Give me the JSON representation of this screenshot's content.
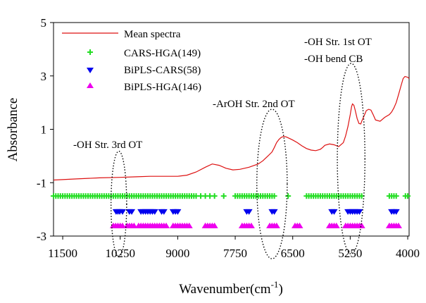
{
  "chart_data": {
    "type": "line",
    "title": "",
    "xlabel": "Wavenumber(cm",
    "xlabel_sup": "-1",
    "xlabel_close": ")",
    "ylabel": "Absorbance",
    "x_reversed": true,
    "xlim": [
      11700,
      3970
    ],
    "ylim": [
      -3,
      5
    ],
    "x_ticks": [
      11500,
      10250,
      9000,
      7750,
      6500,
      5250,
      4000
    ],
    "x_tick_labels": [
      "11500",
      "10250",
      "9000",
      "7750",
      "6500",
      "5250",
      "4000"
    ],
    "y_ticks": [
      -3,
      -1,
      1,
      3,
      5
    ],
    "y_tick_labels": [
      "-3",
      "-1",
      "1",
      "3",
      "5"
    ],
    "grid": false,
    "legend_position": "top-left",
    "series": [
      {
        "name": "Mean spectra",
        "kind": "line",
        "color": "#dd1111",
        "x": [
          11700,
          11200,
          10700,
          10250,
          9900,
          9600,
          9300,
          9000,
          8800,
          8600,
          8400,
          8250,
          8100,
          7950,
          7800,
          7650,
          7450,
          7250,
          7150,
          7050,
          6950,
          6900,
          6850,
          6800,
          6750,
          6700,
          6650,
          6600,
          6500,
          6400,
          6300,
          6200,
          6100,
          6000,
          5900,
          5850,
          5800,
          5700,
          5600,
          5500,
          5400,
          5350,
          5300,
          5250,
          5220,
          5200,
          5170,
          5140,
          5100,
          5060,
          5020,
          5000,
          4950,
          4900,
          4850,
          4800,
          4750,
          4700,
          4600,
          4500,
          4400,
          4350,
          4300,
          4250,
          4200,
          4150,
          4100,
          4060,
          4000,
          3970
        ],
        "y": [
          -0.9,
          -0.86,
          -0.82,
          -0.8,
          -0.78,
          -0.76,
          -0.76,
          -0.76,
          -0.72,
          -0.6,
          -0.42,
          -0.3,
          -0.35,
          -0.46,
          -0.52,
          -0.5,
          -0.42,
          -0.3,
          -0.18,
          -0.02,
          0.15,
          0.32,
          0.5,
          0.62,
          0.7,
          0.73,
          0.72,
          0.68,
          0.6,
          0.5,
          0.38,
          0.28,
          0.22,
          0.2,
          0.25,
          0.32,
          0.4,
          0.45,
          0.42,
          0.35,
          0.5,
          0.75,
          1.1,
          1.55,
          1.85,
          1.95,
          1.9,
          1.7,
          1.4,
          1.22,
          1.2,
          1.3,
          1.5,
          1.7,
          1.75,
          1.72,
          1.55,
          1.35,
          1.3,
          1.45,
          1.55,
          1.65,
          1.8,
          2.0,
          2.3,
          2.6,
          2.9,
          2.98,
          2.95,
          2.9
        ]
      },
      {
        "name": "CARS-HGA(149)",
        "kind": "marker",
        "marker": "plus",
        "color": "#22dd22",
        "y_level": -1.5,
        "x": [
          11700,
          11650,
          11600,
          11550,
          11500,
          11450,
          11400,
          11350,
          11300,
          11250,
          11200,
          11150,
          11100,
          11050,
          11000,
          10950,
          10900,
          10850,
          10800,
          10750,
          10700,
          10650,
          10600,
          10550,
          10500,
          10450,
          10400,
          10350,
          10300,
          10250,
          10200,
          10150,
          10100,
          10050,
          10000,
          9950,
          9900,
          9850,
          9800,
          9750,
          9700,
          9650,
          9600,
          9550,
          9500,
          9450,
          9400,
          9350,
          9300,
          9250,
          9200,
          9150,
          9100,
          9050,
          9000,
          8950,
          8900,
          8850,
          8800,
          8750,
          8700,
          8650,
          8600,
          8500,
          8400,
          8300,
          8200,
          8000,
          7750,
          7700,
          7650,
          7600,
          7550,
          7500,
          7450,
          7400,
          7350,
          7300,
          7250,
          7200,
          7150,
          7100,
          7050,
          7000,
          6950,
          6900,
          6600,
          6200,
          6150,
          6100,
          6050,
          6000,
          5950,
          5900,
          5850,
          5800,
          5750,
          5700,
          5650,
          5600,
          5550,
          5500,
          5450,
          5400,
          5350,
          5300,
          5250,
          5200,
          5150,
          5100,
          5050,
          5000,
          4400,
          4350,
          4300,
          4250,
          4050,
          4000
        ]
      },
      {
        "name": "BiPLS-CARS(58)",
        "kind": "marker",
        "marker": "triangle-down",
        "color": "#0000ee",
        "y_level": -2.1,
        "x": [
          10340,
          10300,
          10260,
          10200,
          10050,
          10000,
          9800,
          9750,
          9700,
          9650,
          9600,
          9550,
          9500,
          9350,
          9300,
          9100,
          9050,
          9000,
          7500,
          7450,
          6950,
          6900,
          5650,
          5600,
          5300,
          5250,
          5200,
          5150,
          5100,
          5050,
          4350,
          4300,
          4250
        ]
      },
      {
        "name": "BiPLS-HGA(146)",
        "kind": "marker",
        "marker": "triangle-up",
        "color": "#ee00ee",
        "y_level": -2.6,
        "x": [
          10400,
          10350,
          10300,
          10250,
          10200,
          10100,
          10050,
          10000,
          9950,
          9850,
          9800,
          9750,
          9700,
          9650,
          9600,
          9550,
          9500,
          9450,
          9400,
          9350,
          9300,
          9250,
          9100,
          9050,
          9000,
          8950,
          8900,
          8850,
          8800,
          8750,
          8400,
          8350,
          8300,
          8250,
          8200,
          7600,
          7550,
          7500,
          7450,
          7400,
          7000,
          6950,
          6900,
          6850,
          6450,
          6400,
          6350,
          5700,
          5650,
          5600,
          5550,
          5350,
          5300,
          5250,
          5200,
          5150,
          5100,
          5050,
          5000,
          4400,
          4350,
          4300,
          4250,
          4200
        ]
      }
    ],
    "annotations": [
      {
        "text": "-OH Str. 3rd OT",
        "ellipse_center": [
          10280,
          -1.8
        ],
        "ellipse_rx": 170,
        "ellipse_ry": 1.98
      },
      {
        "text": "-ArOH Str. 2nd OT",
        "ellipse_center": [
          6950,
          -1.05
        ],
        "ellipse_rx": 330,
        "ellipse_ry": 2.8
      },
      {
        "text": "-OH Str. 1st OT",
        "text2": "-OH bend CB",
        "ellipse_center": [
          5230,
          -0.1
        ],
        "ellipse_rx": 300,
        "ellipse_ry": 3.57
      }
    ]
  }
}
